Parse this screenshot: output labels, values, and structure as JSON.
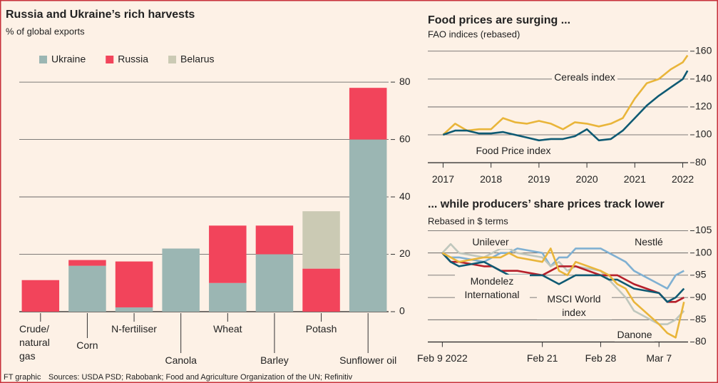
{
  "chart_data": [
    {
      "type": "bar",
      "stacked": true,
      "title": "Russia and Ukraine’s rich harvests",
      "subtitle": "% of global exports",
      "categories": [
        "Crude/ natural gas",
        "Corn",
        "N-fertiliser",
        "Canola",
        "Wheat",
        "Barley",
        "Potash",
        "Sunflower oil"
      ],
      "series": [
        {
          "name": "Ukraine",
          "color": "#9bb6b3",
          "values": [
            0,
            16,
            1.5,
            22,
            10,
            20,
            0,
            60
          ]
        },
        {
          "name": "Russia",
          "color": "#f2445b",
          "values": [
            11,
            2,
            16,
            0,
            20,
            10,
            15,
            18
          ]
        },
        {
          "name": "Belarus",
          "color": "#cbcab4",
          "values": [
            0,
            0,
            0,
            0,
            0,
            0,
            20,
            0
          ]
        }
      ],
      "ylim": [
        0,
        85
      ],
      "yticks": [
        0,
        20,
        40,
        60,
        80
      ],
      "grid": true,
      "legend": "top-left"
    },
    {
      "type": "line",
      "title": "Food prices are surging ...",
      "subtitle": "FAO indices (rebased)",
      "x": [
        2017,
        2017.25,
        2017.5,
        2017.75,
        2018,
        2018.25,
        2018.5,
        2018.75,
        2019,
        2019.25,
        2019.5,
        2019.75,
        2020,
        2020.25,
        2020.5,
        2020.75,
        2021,
        2021.25,
        2021.5,
        2021.75,
        2022,
        2022.1
      ],
      "series": [
        {
          "name": "Cereals index",
          "color": "#e9b53a",
          "values": [
            100,
            108,
            103,
            104,
            104,
            112,
            109,
            108,
            110,
            108,
            104,
            109,
            108,
            106,
            108,
            112,
            126,
            137,
            140,
            147,
            152,
            157
          ]
        },
        {
          "name": "Food Price index",
          "color": "#0e5a73",
          "values": [
            100,
            103,
            103,
            101,
            101,
            102,
            100,
            98,
            96,
            97,
            97,
            99,
            104,
            96,
            97,
            103,
            112,
            121,
            128,
            134,
            140,
            146
          ]
        }
      ],
      "xlim": [
        2016.8,
        2022.2
      ],
      "xticks": [
        2017,
        2018,
        2019,
        2020,
        2021,
        2022
      ],
      "ylim": [
        78,
        165
      ],
      "yticks": [
        80,
        100,
        120,
        140,
        160
      ],
      "grid": true
    },
    {
      "type": "line",
      "title": "... while producers’ share prices track lower",
      "subtitle": "Rebased in $ terms",
      "x": [
        "2022-02-09",
        "2022-02-10",
        "2022-02-11",
        "2022-02-14",
        "2022-02-15",
        "2022-02-16",
        "2022-02-17",
        "2022-02-18",
        "2022-02-21",
        "2022-02-22",
        "2022-02-23",
        "2022-02-24",
        "2022-02-25",
        "2022-02-28",
        "2022-03-01",
        "2022-03-02",
        "2022-03-03",
        "2022-03-04",
        "2022-03-07",
        "2022-03-08",
        "2022-03-09",
        "2022-03-10"
      ],
      "series": [
        {
          "name": "Nestlé",
          "color": "#7fb0d2",
          "values": [
            100,
            99,
            99,
            98,
            99,
            100,
            100,
            101,
            100,
            97,
            99,
            99,
            101,
            101,
            100,
            99,
            98,
            96,
            93,
            92,
            95,
            96
          ]
        },
        {
          "name": "Unilever",
          "color": "#bfc7bd",
          "values": [
            100,
            102,
            100,
            99,
            100,
            101,
            101,
            100,
            99,
            97,
            98,
            96,
            97,
            96,
            94,
            92,
            90,
            87,
            84,
            84,
            85,
            87
          ]
        },
        {
          "name": "Mondelez International",
          "color": "#b51f2a",
          "values": [
            100,
            98,
            98,
            97,
            97,
            96,
            96,
            96,
            95,
            96,
            97,
            97,
            97,
            95,
            95,
            95,
            94,
            93,
            91,
            89,
            89,
            90
          ]
        },
        {
          "name": "MSCI World index",
          "color": "#0e5a73",
          "values": [
            100,
            98,
            97,
            98,
            97,
            96,
            95,
            95,
            95,
            94,
            93,
            94,
            95,
            95,
            94,
            94,
            93,
            92,
            91,
            89,
            90,
            92
          ]
        },
        {
          "name": "Danone",
          "color": "#e9b53a",
          "values": [
            100,
            99,
            98,
            99,
            99,
            99,
            100,
            99,
            98,
            101,
            96,
            95,
            98,
            96,
            95,
            93,
            92,
            89,
            84,
            82,
            81,
            89
          ]
        }
      ],
      "xlim": [
        "2022-02-07",
        "2022-03-11"
      ],
      "xticks": [
        {
          "value": "2022-02-09",
          "label": "Feb 9 2022"
        },
        {
          "value": "2022-02-21",
          "label": "Feb 21"
        },
        {
          "value": "2022-02-28",
          "label": "Feb 28"
        },
        {
          "value": "2022-03-07",
          "label": "Mar 7"
        }
      ],
      "ylim": [
        78,
        107
      ],
      "yticks": [
        80,
        85,
        90,
        95,
        100,
        105
      ],
      "grid": true
    }
  ],
  "footer": {
    "credit": "FT graphic",
    "source": "Sources: USDA PSD; Rabobank; Food and Agriculture Organization of the UN; Refinitiv"
  }
}
